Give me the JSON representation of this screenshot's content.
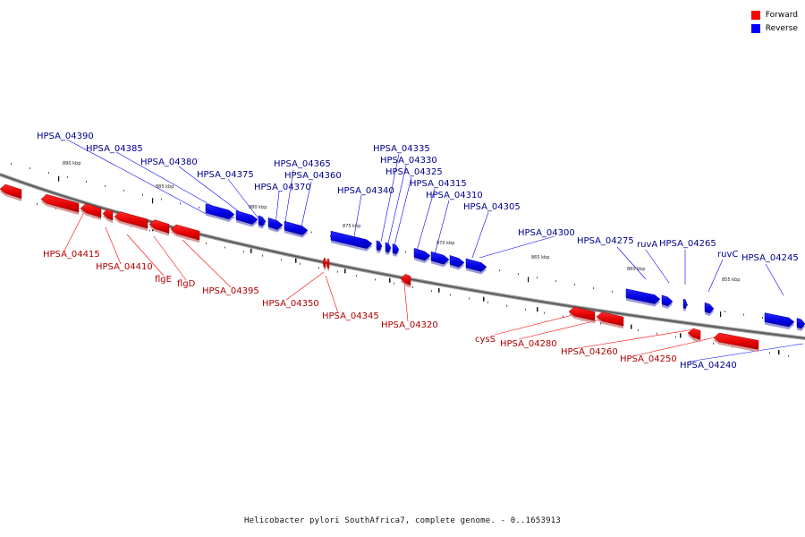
{
  "legend": {
    "forward_label": "Forward",
    "reverse_label": "Reverse",
    "forward_color": "#ff0000",
    "reverse_color": "#0000ff"
  },
  "caption": "Helicobacter pylori SouthAfrica7, complete genome. - 0..1653913",
  "ticks": [
    "890 kbp",
    "885 kbp",
    "880 kbp",
    "875 kbp",
    "870 kbp",
    "865 kbp",
    "860 kbp",
    "855 kbp"
  ],
  "genes_reverse": [
    "HPSA_04390",
    "HPSA_04385",
    "HPSA_04380",
    "HPSA_04375",
    "HPSA_04370",
    "HPSA_04365",
    "HPSA_04360",
    "HPSA_04340",
    "HPSA_04335",
    "HPSA_04330",
    "HPSA_04325",
    "HPSA_04315",
    "HPSA_04310",
    "HPSA_04305",
    "HPSA_04300",
    "HPSA_04275",
    "ruvA",
    "HPSA_04265",
    "ruvC",
    "HPSA_04245",
    "HPSA_04240"
  ],
  "genes_forward": [
    "HPSA_04415",
    "HPSA_04410",
    "flgE",
    "flgD",
    "HPSA_04395",
    "HPSA_04350",
    "HPSA_04345",
    "HPSA_04320",
    "cysS",
    "HPSA_04280",
    "HPSA_04260",
    "HPSA_04250"
  ]
}
